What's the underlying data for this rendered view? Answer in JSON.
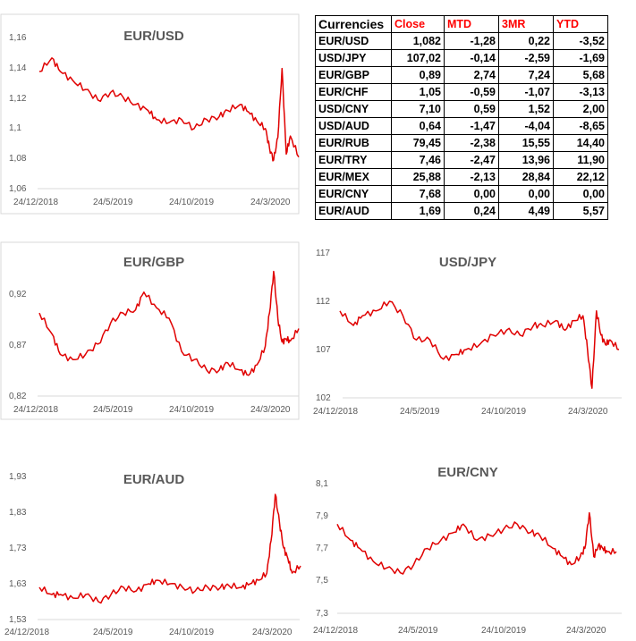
{
  "table": {
    "caption": "Currencies",
    "headers": [
      "Close",
      "MTD",
      "3MR",
      "YTD"
    ],
    "rows": [
      {
        "name": "EUR/USD",
        "close": "1,082",
        "mtd": "-1,28",
        "r3m": "0,22",
        "ytd": "-3,52"
      },
      {
        "name": "USD/JPY",
        "close": "107,02",
        "mtd": "-0,14",
        "r3m": "-2,59",
        "ytd": "-1,69"
      },
      {
        "name": "EUR/GBP",
        "close": "0,89",
        "mtd": "2,74",
        "r3m": "7,24",
        "ytd": "5,68"
      },
      {
        "name": "EUR/CHF",
        "close": "1,05",
        "mtd": "-0,59",
        "r3m": "-1,07",
        "ytd": "-3,13"
      },
      {
        "name": "USD/CNY",
        "close": "7,10",
        "mtd": "0,59",
        "r3m": "1,52",
        "ytd": "2,00"
      },
      {
        "name": "USD/AUD",
        "close": "0,64",
        "mtd": "-1,47",
        "r3m": "-4,04",
        "ytd": "-8,65"
      },
      {
        "name": "EUR/RUB",
        "close": "79,45",
        "mtd": "-2,38",
        "r3m": "15,55",
        "ytd": "14,40"
      },
      {
        "name": "EUR/TRY",
        "close": "7,46",
        "mtd": "-2,47",
        "r3m": "13,96",
        "ytd": "11,90"
      },
      {
        "name": "EUR/MEX",
        "close": "25,88",
        "mtd": "-2,13",
        "r3m": "28,84",
        "ytd": "22,12"
      },
      {
        "name": "EUR/CNY",
        "close": "7,68",
        "mtd": "0,00",
        "r3m": "0,00",
        "ytd": "0,00"
      },
      {
        "name": "EUR/AUD",
        "close": "1,69",
        "mtd": "0,24",
        "r3m": "4,49",
        "ytd": "5,57"
      }
    ]
  },
  "chart_data": [
    {
      "id": "eurusd",
      "type": "line",
      "title": "EUR/USD",
      "ylim": [
        1.06,
        1.16
      ],
      "yticks": [
        "1,06",
        "1,08",
        "1,1",
        "1,12",
        "1,14",
        "1,16"
      ],
      "xticks": [
        "24/12/2018",
        "24/5/2019",
        "24/10/2019",
        "24/3/2020"
      ],
      "x": [
        0,
        6,
        10,
        16,
        22,
        28,
        34,
        40,
        46,
        52,
        56,
        62,
        68,
        74,
        80,
        86,
        90,
        96,
        100,
        104,
        108,
        110,
        112,
        114,
        116,
        118,
        120,
        124
      ],
      "y": [
        1.138,
        1.147,
        1.138,
        1.132,
        1.126,
        1.119,
        1.124,
        1.121,
        1.116,
        1.112,
        1.106,
        1.104,
        1.106,
        1.1,
        1.106,
        1.108,
        1.112,
        1.116,
        1.111,
        1.105,
        1.1,
        1.087,
        1.079,
        1.094,
        1.14,
        1.083,
        1.095,
        1.081
      ]
    },
    {
      "id": "eurgbp",
      "type": "line",
      "title": "EUR/GBP",
      "ylim": [
        0.82,
        0.95
      ],
      "yticks": [
        "0,82",
        "0,87",
        "0,92"
      ],
      "xticks": [
        "24/12/2018",
        "24/5/2019",
        "24/10/2019",
        "24/3/2020"
      ],
      "x": [
        0,
        6,
        10,
        16,
        22,
        28,
        34,
        40,
        46,
        50,
        56,
        62,
        68,
        74,
        80,
        86,
        90,
        96,
        100,
        104,
        108,
        110,
        112,
        114,
        116,
        118,
        120,
        124
      ],
      "y": [
        0.9,
        0.88,
        0.86,
        0.855,
        0.86,
        0.87,
        0.89,
        0.9,
        0.903,
        0.92,
        0.905,
        0.895,
        0.863,
        0.855,
        0.845,
        0.845,
        0.852,
        0.845,
        0.84,
        0.85,
        0.868,
        0.9,
        0.94,
        0.895,
        0.872,
        0.875,
        0.873,
        0.885
      ]
    },
    {
      "id": "usdjpy",
      "type": "line",
      "title": "USD/JPY",
      "ylim": [
        102,
        117
      ],
      "yticks": [
        "102",
        "107",
        "112",
        "117"
      ],
      "xticks": [
        "24/12/2018",
        "24/5/2019",
        "24/10/2019",
        "24/3/2020"
      ],
      "x": [
        0,
        6,
        10,
        16,
        22,
        28,
        34,
        40,
        46,
        52,
        56,
        62,
        68,
        74,
        80,
        86,
        90,
        96,
        100,
        104,
        108,
        110,
        112,
        114,
        116,
        118,
        120,
        124
      ],
      "y": [
        111.0,
        109.5,
        110.5,
        111.0,
        112.0,
        110.5,
        108.0,
        108.0,
        106.0,
        106.5,
        107.0,
        107.5,
        108.5,
        109.0,
        108.5,
        109.5,
        109.5,
        110.0,
        109.0,
        110.0,
        110.5,
        107.0,
        103.0,
        111.0,
        108.5,
        107.5,
        108.0,
        107.0
      ]
    },
    {
      "id": "euraud",
      "type": "line",
      "title": "EUR/AUD",
      "ylim": [
        1.53,
        1.93
      ],
      "yticks": [
        "1,53",
        "1,63",
        "1,73",
        "1,83",
        "1,93"
      ],
      "xticks": [
        "24/12/2018",
        "24/5/2019",
        "24/10/2019",
        "24/3/2020"
      ],
      "x": [
        0,
        6,
        10,
        16,
        22,
        28,
        34,
        40,
        46,
        52,
        56,
        62,
        68,
        74,
        80,
        86,
        90,
        96,
        100,
        104,
        108,
        110,
        112,
        114,
        116,
        118,
        120,
        124
      ],
      "y": [
        1.62,
        1.6,
        1.6,
        1.59,
        1.6,
        1.58,
        1.6,
        1.62,
        1.61,
        1.63,
        1.64,
        1.63,
        1.62,
        1.61,
        1.62,
        1.62,
        1.625,
        1.62,
        1.63,
        1.64,
        1.66,
        1.75,
        1.88,
        1.8,
        1.73,
        1.7,
        1.66,
        1.68
      ]
    },
    {
      "id": "eurcny",
      "type": "line",
      "title": "EUR/CNY",
      "ylim": [
        7.3,
        8.1
      ],
      "yticks": [
        "7,3",
        "7,5",
        "7,7",
        "7,9",
        "8,1"
      ],
      "xticks": [
        "24/12/2018",
        "24/5/2019",
        "24/10/2019",
        "24/3/2020"
      ],
      "x": [
        0,
        6,
        10,
        16,
        22,
        28,
        34,
        40,
        46,
        52,
        56,
        62,
        68,
        74,
        80,
        86,
        90,
        96,
        100,
        104,
        108,
        110,
        112,
        114,
        116,
        118,
        120,
        124
      ],
      "y": [
        7.85,
        7.75,
        7.7,
        7.62,
        7.58,
        7.55,
        7.6,
        7.7,
        7.75,
        7.8,
        7.85,
        7.75,
        7.78,
        7.82,
        7.85,
        7.8,
        7.78,
        7.7,
        7.65,
        7.6,
        7.65,
        7.7,
        7.92,
        7.65,
        7.72,
        7.7,
        7.68,
        7.68
      ]
    }
  ]
}
